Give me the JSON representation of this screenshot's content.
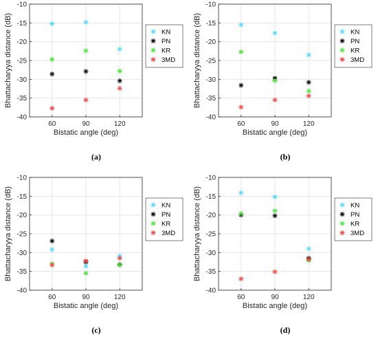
{
  "chart_data": [
    {
      "type": "scatter",
      "caption": "(a)",
      "xlabel": "Bistatic angle (deg)",
      "ylabel": "Bhattacharyya distance (dB)",
      "x_ticks": [
        "60",
        "90",
        "120"
      ],
      "y_ticks": [
        "-10",
        "-15",
        "-20",
        "-25",
        "-30",
        "-35",
        "-40"
      ],
      "xlim": [
        40,
        140
      ],
      "ylim": [
        -40,
        -10
      ],
      "grid": true,
      "legend_position": "outside-right",
      "series": [
        {
          "name": "KN",
          "color": "#4dd9ff",
          "x": [
            60,
            90,
            120
          ],
          "y": [
            -15.2,
            -14.8,
            -22.0
          ]
        },
        {
          "name": "PN",
          "color": "#000000",
          "x": [
            60,
            90,
            120
          ],
          "y": [
            -28.6,
            -27.9,
            -30.4
          ]
        },
        {
          "name": "KR",
          "color": "#40e830",
          "x": [
            60,
            90,
            120
          ],
          "y": [
            -24.7,
            -22.4,
            -27.8
          ]
        },
        {
          "name": "3MD",
          "color": "#ff4040",
          "x": [
            60,
            90,
            120
          ],
          "y": [
            -37.7,
            -35.5,
            -32.4
          ]
        }
      ]
    },
    {
      "type": "scatter",
      "caption": "(b)",
      "xlabel": "Bistatic angle (deg)",
      "ylabel": "Bhattacharyya distance (dB)",
      "x_ticks": [
        "60",
        "90",
        "120"
      ],
      "y_ticks": [
        "-10",
        "-15",
        "-20",
        "-25",
        "-30",
        "-35",
        "-40"
      ],
      "xlim": [
        40,
        140
      ],
      "ylim": [
        -40,
        -10
      ],
      "grid": true,
      "legend_position": "outside-right",
      "series": [
        {
          "name": "KN",
          "color": "#4dd9ff",
          "x": [
            60,
            90,
            120
          ],
          "y": [
            -15.5,
            -17.7,
            -23.5
          ]
        },
        {
          "name": "PN",
          "color": "#000000",
          "x": [
            60,
            90,
            120
          ],
          "y": [
            -31.6,
            -29.7,
            -30.8
          ]
        },
        {
          "name": "KR",
          "color": "#40e830",
          "x": [
            60,
            90,
            120
          ],
          "y": [
            -22.7,
            -30.4,
            -33.1
          ]
        },
        {
          "name": "3MD",
          "color": "#ff4040",
          "x": [
            60,
            90,
            120
          ],
          "y": [
            -37.4,
            -35.5,
            -34.4
          ]
        }
      ]
    },
    {
      "type": "scatter",
      "caption": "(c)",
      "xlabel": "Bistatic angle (deg)",
      "ylabel": "Bhattacharyya distance (dB)",
      "x_ticks": [
        "60",
        "90",
        "120"
      ],
      "y_ticks": [
        "-10",
        "-15",
        "-20",
        "-25",
        "-30",
        "-35",
        "-40"
      ],
      "xlim": [
        40,
        140
      ],
      "ylim": [
        -40,
        -10
      ],
      "grid": true,
      "legend_position": "outside-right",
      "series": [
        {
          "name": "KN",
          "color": "#4dd9ff",
          "x": [
            60,
            90,
            120
          ],
          "y": [
            -29.2,
            -33.6,
            -30.9
          ]
        },
        {
          "name": "PN",
          "color": "#000000",
          "x": [
            60,
            90,
            120
          ],
          "y": [
            -26.9,
            -32.5,
            -33.2
          ]
        },
        {
          "name": "KR",
          "color": "#40e830",
          "x": [
            60,
            90,
            120
          ],
          "y": [
            -33.0,
            -35.5,
            -33.3
          ]
        },
        {
          "name": "3MD",
          "color": "#ff4040",
          "x": [
            60,
            90,
            120
          ],
          "y": [
            -33.3,
            -32.2,
            -31.5
          ]
        }
      ]
    },
    {
      "type": "scatter",
      "caption": "(d)",
      "xlabel": "Bistatic angle (deg)",
      "ylabel": "Bhattacharyya distance (dB)",
      "x_ticks": [
        "60",
        "90",
        "120"
      ],
      "y_ticks": [
        "-10",
        "-15",
        "-20",
        "-25",
        "-30",
        "-35",
        "-40"
      ],
      "xlim": [
        40,
        140
      ],
      "ylim": [
        -40,
        -10
      ],
      "grid": true,
      "legend_position": "outside-right",
      "series": [
        {
          "name": "KN",
          "color": "#4dd9ff",
          "x": [
            60,
            90,
            120
          ],
          "y": [
            -14.1,
            -15.2,
            -29.0
          ]
        },
        {
          "name": "PN",
          "color": "#000000",
          "x": [
            60,
            90,
            120
          ],
          "y": [
            -20.0,
            -20.2,
            -31.5
          ]
        },
        {
          "name": "KR",
          "color": "#40e830",
          "x": [
            60,
            90,
            120
          ],
          "y": [
            -19.6,
            -18.9,
            -32.1
          ]
        },
        {
          "name": "3MD",
          "color": "#ff4040",
          "x": [
            60,
            90,
            120
          ],
          "y": [
            -37.0,
            -35.1,
            -31.8
          ]
        }
      ]
    }
  ]
}
